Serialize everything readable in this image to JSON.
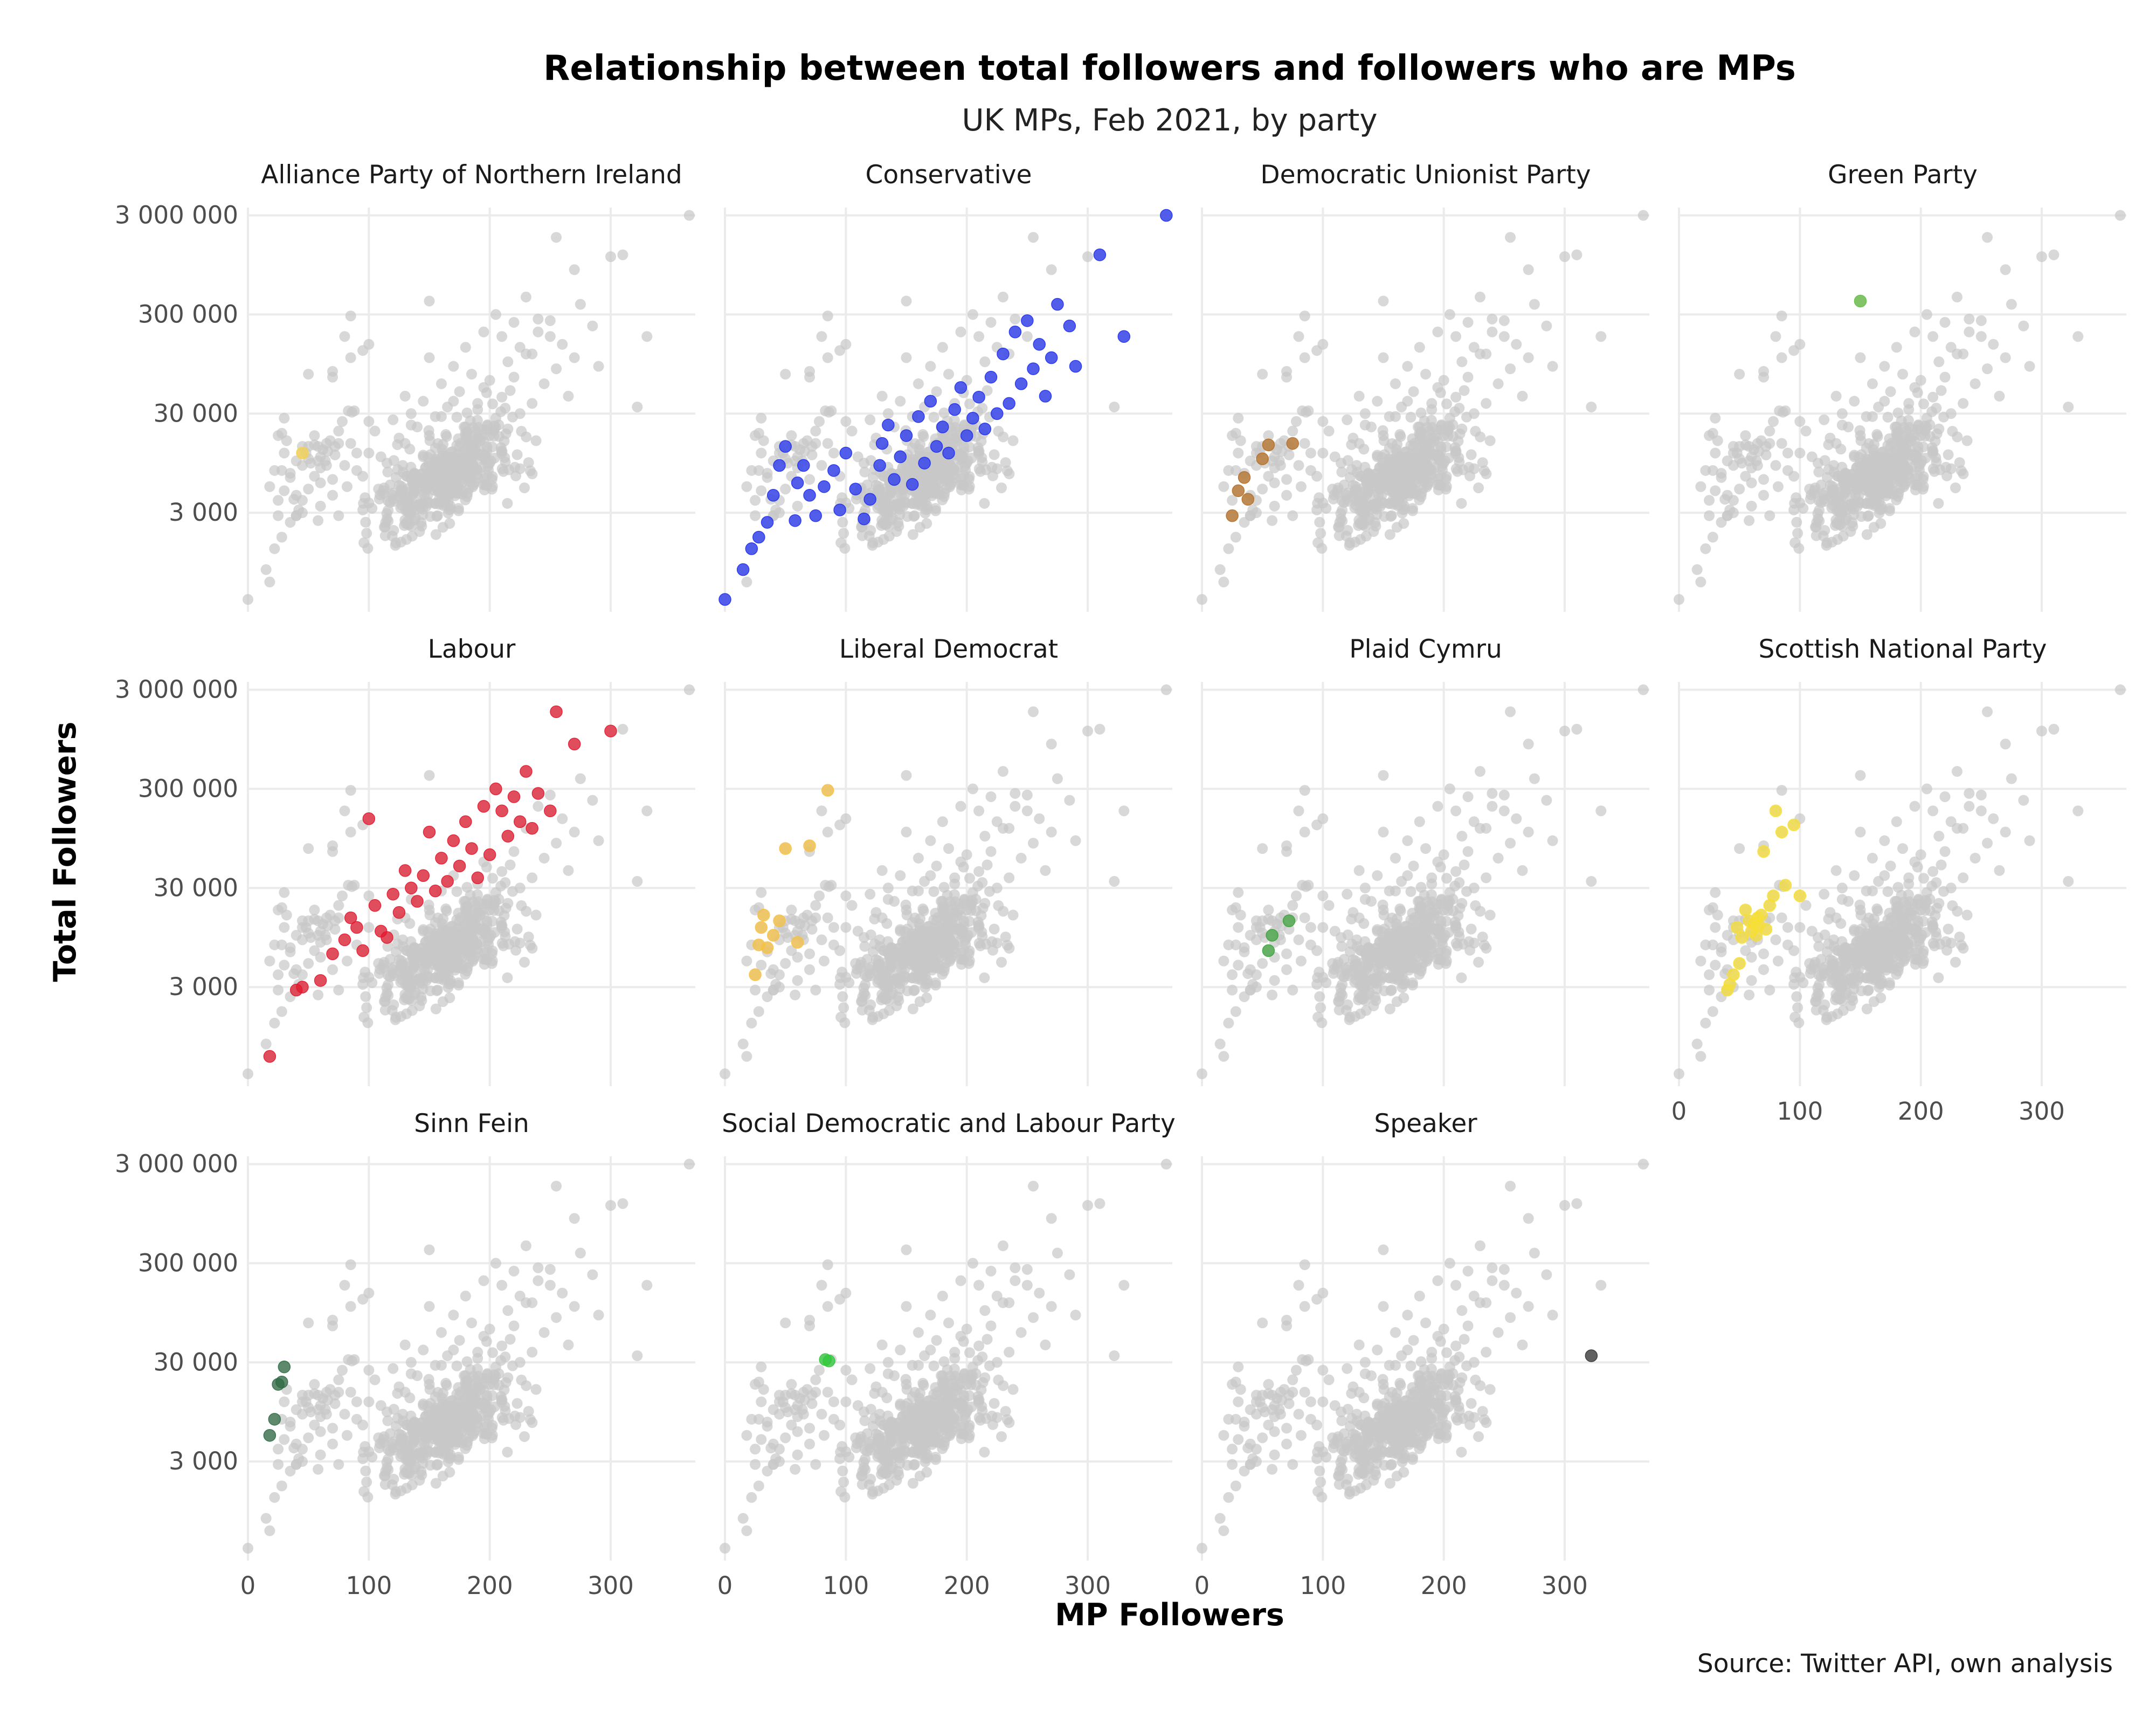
{
  "chart_data": {
    "type": "scatter",
    "title": "Relationship between total followers and followers who are MPs",
    "subtitle": "UK MPs, Feb 2021, by party",
    "xlabel": "MP Followers",
    "ylabel": "Total Followers",
    "caption": "Source: Twitter API, own analysis",
    "y_scale": "log10",
    "xlim": [
      0,
      370
    ],
    "ylim": [
      300,
      3600000
    ],
    "x_ticks": [
      0,
      100,
      200,
      300
    ],
    "x_tick_labels": [
      "0",
      "100",
      "200",
      "300"
    ],
    "y_ticks": [
      3000,
      30000,
      300000,
      3000000
    ],
    "y_tick_labels": [
      "3 000",
      "30 000",
      "300 000",
      "3 000 000"
    ],
    "background_color": "#c8c8c8",
    "facets": [
      {
        "name": "Alliance Party of Northern Ireland",
        "color": "#f6d44a",
        "points": [
          [
            45,
            12000
          ]
        ]
      },
      {
        "name": "Conservative",
        "color": "#1f2ff0",
        "points": [
          [
            0,
            400
          ],
          [
            15,
            800
          ],
          [
            22,
            1300
          ],
          [
            28,
            1700
          ],
          [
            35,
            2400
          ],
          [
            40,
            4500
          ],
          [
            45,
            9000
          ],
          [
            50,
            14000
          ],
          [
            58,
            2500
          ],
          [
            60,
            6000
          ],
          [
            65,
            9000
          ],
          [
            70,
            4500
          ],
          [
            75,
            2800
          ],
          [
            82,
            5500
          ],
          [
            90,
            8000
          ],
          [
            95,
            3200
          ],
          [
            100,
            12000
          ],
          [
            108,
            5200
          ],
          [
            115,
            2600
          ],
          [
            120,
            4100
          ],
          [
            128,
            9000
          ],
          [
            130,
            15000
          ],
          [
            135,
            23000
          ],
          [
            140,
            6500
          ],
          [
            145,
            11000
          ],
          [
            150,
            18000
          ],
          [
            155,
            5800
          ],
          [
            160,
            28000
          ],
          [
            165,
            9500
          ],
          [
            170,
            40000
          ],
          [
            175,
            14000
          ],
          [
            180,
            22000
          ],
          [
            185,
            12000
          ],
          [
            190,
            33000
          ],
          [
            195,
            55000
          ],
          [
            200,
            18000
          ],
          [
            205,
            27000
          ],
          [
            210,
            44000
          ],
          [
            215,
            21000
          ],
          [
            220,
            70000
          ],
          [
            225,
            30000
          ],
          [
            230,
            120000
          ],
          [
            235,
            38000
          ],
          [
            240,
            200000
          ],
          [
            245,
            60000
          ],
          [
            250,
            260000
          ],
          [
            255,
            85000
          ],
          [
            260,
            150000
          ],
          [
            265,
            45000
          ],
          [
            270,
            110000
          ],
          [
            275,
            380000
          ],
          [
            285,
            230000
          ],
          [
            290,
            90000
          ],
          [
            310,
            1200000
          ],
          [
            330,
            180000
          ],
          [
            365,
            3000000
          ]
        ]
      },
      {
        "name": "Democratic Unionist Party",
        "color": "#b56d22",
        "points": [
          [
            25,
            2800
          ],
          [
            30,
            5000
          ],
          [
            35,
            6800
          ],
          [
            38,
            4100
          ],
          [
            50,
            10500
          ],
          [
            55,
            14500
          ],
          [
            75,
            15000
          ]
        ]
      },
      {
        "name": "Green Party",
        "color": "#5fbd3c",
        "points": [
          [
            150,
            410000
          ]
        ]
      },
      {
        "name": "Labour",
        "color": "#e3172c",
        "points": [
          [
            18,
            600
          ],
          [
            40,
            2800
          ],
          [
            45,
            3000
          ],
          [
            60,
            3500
          ],
          [
            70,
            6500
          ],
          [
            80,
            9000
          ],
          [
            85,
            15000
          ],
          [
            90,
            12000
          ],
          [
            95,
            7000
          ],
          [
            100,
            150000
          ],
          [
            105,
            20000
          ],
          [
            110,
            11000
          ],
          [
            115,
            9500
          ],
          [
            120,
            26000
          ],
          [
            125,
            17000
          ],
          [
            130,
            45000
          ],
          [
            135,
            30000
          ],
          [
            140,
            22000
          ],
          [
            145,
            40000
          ],
          [
            150,
            110000
          ],
          [
            155,
            28000
          ],
          [
            160,
            60000
          ],
          [
            165,
            35000
          ],
          [
            170,
            90000
          ],
          [
            175,
            50000
          ],
          [
            180,
            140000
          ],
          [
            185,
            75000
          ],
          [
            190,
            38000
          ],
          [
            195,
            200000
          ],
          [
            200,
            65000
          ],
          [
            205,
            300000
          ],
          [
            210,
            180000
          ],
          [
            215,
            100000
          ],
          [
            220,
            250000
          ],
          [
            225,
            140000
          ],
          [
            230,
            450000
          ],
          [
            235,
            120000
          ],
          [
            240,
            270000
          ],
          [
            250,
            180000
          ],
          [
            255,
            1800000
          ],
          [
            270,
            850000
          ],
          [
            300,
            1150000
          ]
        ]
      },
      {
        "name": "Liberal Democrat",
        "color": "#f7c140",
        "points": [
          [
            25,
            4000
          ],
          [
            28,
            8000
          ],
          [
            30,
            12000
          ],
          [
            32,
            16000
          ],
          [
            35,
            7500
          ],
          [
            40,
            10000
          ],
          [
            45,
            14000
          ],
          [
            50,
            75000
          ],
          [
            60,
            8500
          ],
          [
            70,
            80000
          ],
          [
            85,
            290000
          ]
        ]
      },
      {
        "name": "Plaid Cymru",
        "color": "#3aa23a",
        "points": [
          [
            55,
            7000
          ],
          [
            58,
            10000
          ],
          [
            72,
            14000
          ]
        ]
      },
      {
        "name": "Scottish National Party",
        "color": "#f7df33",
        "points": [
          [
            40,
            2800
          ],
          [
            42,
            3200
          ],
          [
            45,
            4000
          ],
          [
            48,
            12000
          ],
          [
            50,
            5200
          ],
          [
            52,
            9500
          ],
          [
            55,
            18000
          ],
          [
            58,
            14000
          ],
          [
            60,
            11000
          ],
          [
            62,
            13000
          ],
          [
            64,
            10000
          ],
          [
            65,
            15000
          ],
          [
            66,
            12500
          ],
          [
            68,
            16000
          ],
          [
            70,
            70000
          ],
          [
            72,
            11500
          ],
          [
            75,
            20000
          ],
          [
            78,
            25000
          ],
          [
            80,
            180000
          ],
          [
            85,
            110000
          ],
          [
            88,
            32000
          ],
          [
            95,
            130000
          ],
          [
            100,
            25000
          ]
        ]
      },
      {
        "name": "Sinn Fein",
        "color": "#2f6b44",
        "points": [
          [
            18,
            5500
          ],
          [
            22,
            8000
          ],
          [
            25,
            18000
          ],
          [
            28,
            19000
          ],
          [
            30,
            27000
          ]
        ]
      },
      {
        "name": "Social Democratic and Labour Party",
        "color": "#2ec93a",
        "points": [
          [
            83,
            32000
          ],
          [
            86,
            31000
          ]
        ]
      },
      {
        "name": "Speaker",
        "color": "#333333",
        "points": [
          [
            322,
            35000
          ]
        ]
      }
    ]
  }
}
